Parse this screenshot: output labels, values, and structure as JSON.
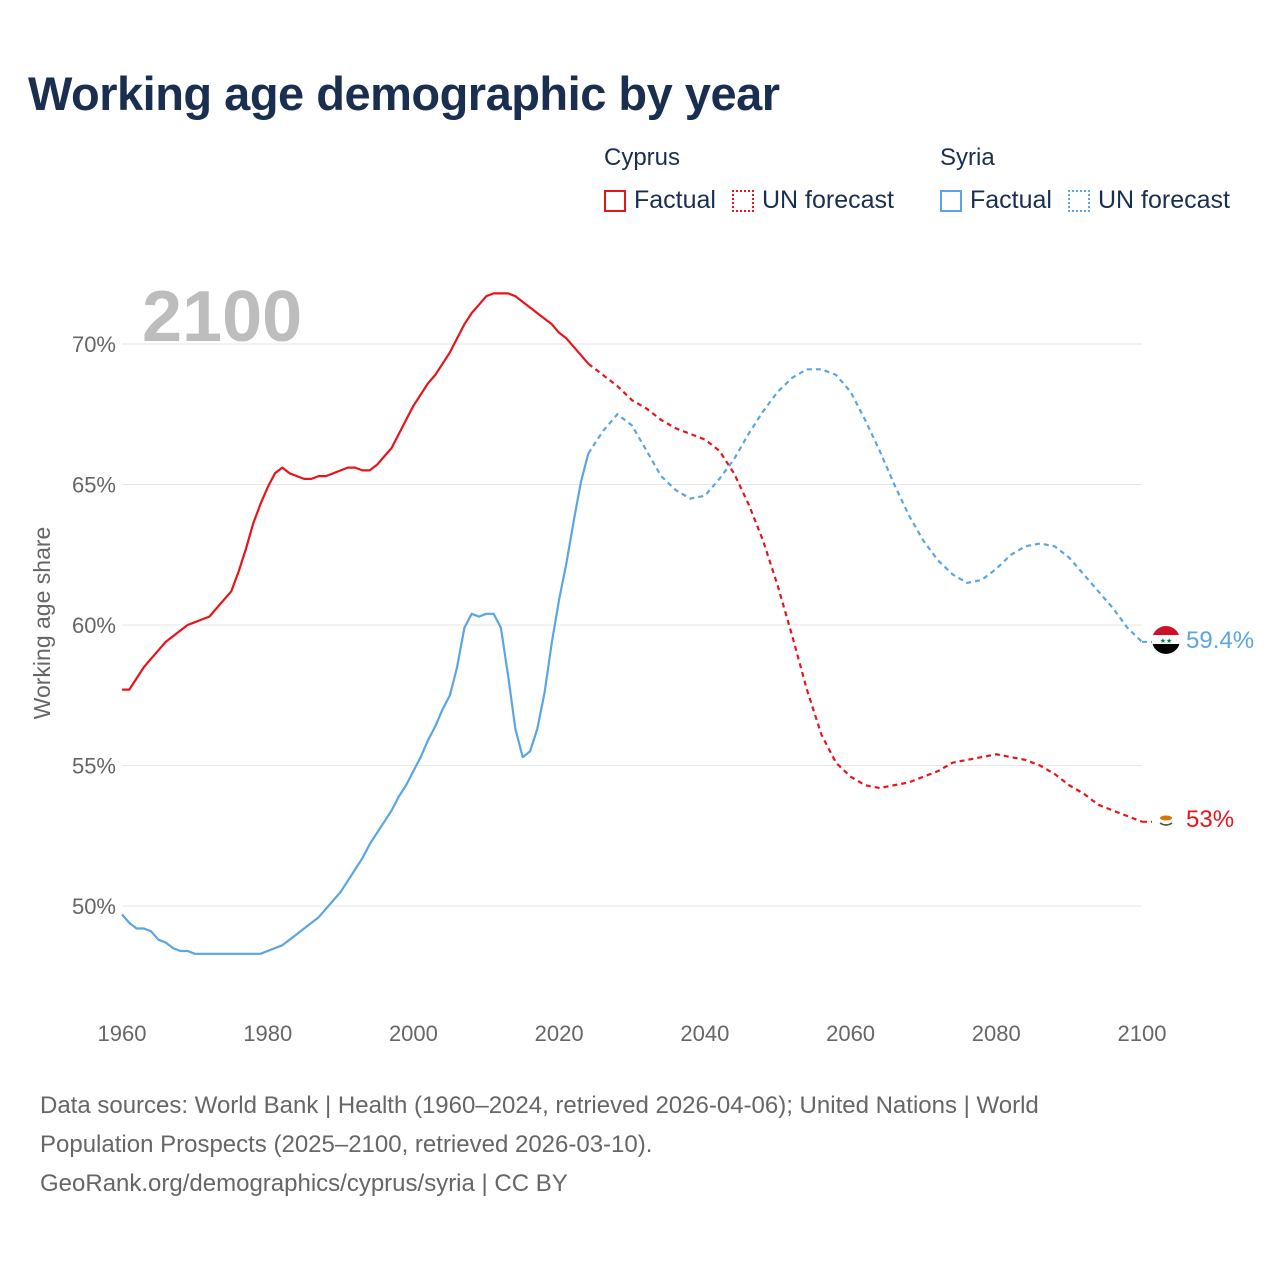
{
  "title": "Working age demographic by year",
  "year_label": "2100",
  "legend": {
    "groups": [
      {
        "name": "Cyprus",
        "factual": "Factual",
        "forecast": "UN forecast",
        "color": "#e8141b"
      },
      {
        "name": "Syria",
        "factual": "Factual",
        "forecast": "UN forecast",
        "color": "#5aa5e3"
      }
    ]
  },
  "footer": {
    "line1": "Data sources: World Bank | Health (1960–2024, retrieved 2026-04-06); United Nations | World",
    "line2": "Population Prospects (2025–2100, retrieved 2026-03-10).",
    "line3": "GeoRank.org/demographics/cyprus/syria | CC BY"
  },
  "chart_data": {
    "type": "line",
    "title": "Working age demographic by year",
    "xlabel": "",
    "ylabel": "Working age share",
    "xlim": [
      1960,
      2100
    ],
    "ylim": [
      46.5,
      72.5
    ],
    "xticks": [
      1960,
      1980,
      2000,
      2020,
      2040,
      2060,
      2080,
      2100
    ],
    "yticks": [
      50,
      55,
      60,
      65,
      70
    ],
    "ytick_labels": [
      "50%",
      "55%",
      "60%",
      "65%",
      "70%"
    ],
    "xtick_labels": [
      "1960",
      "1980",
      "2000",
      "2020",
      "2040",
      "2060",
      "2080",
      "2100"
    ],
    "factual_end": 2024,
    "series": [
      {
        "name": "Cyprus",
        "color": "#e8141b",
        "end_label": "53%",
        "x": [
          1960,
          1961,
          1962,
          1963,
          1964,
          1965,
          1966,
          1967,
          1968,
          1969,
          1970,
          1971,
          1972,
          1973,
          1974,
          1975,
          1976,
          1977,
          1978,
          1979,
          1980,
          1981,
          1982,
          1983,
          1984,
          1985,
          1986,
          1987,
          1988,
          1989,
          1990,
          1991,
          1992,
          1993,
          1994,
          1995,
          1996,
          1997,
          1998,
          1999,
          2000,
          2001,
          2002,
          2003,
          2004,
          2005,
          2006,
          2007,
          2008,
          2009,
          2010,
          2011,
          2012,
          2013,
          2014,
          2015,
          2016,
          2017,
          2018,
          2019,
          2020,
          2021,
          2022,
          2023,
          2024,
          2026,
          2028,
          2030,
          2032,
          2034,
          2036,
          2038,
          2040,
          2042,
          2044,
          2046,
          2048,
          2050,
          2052,
          2054,
          2056,
          2058,
          2060,
          2062,
          2064,
          2066,
          2068,
          2070,
          2072,
          2074,
          2076,
          2078,
          2080,
          2082,
          2084,
          2086,
          2088,
          2090,
          2092,
          2094,
          2096,
          2098,
          2100
        ],
        "values": [
          57.7,
          57.7,
          58.1,
          58.5,
          58.8,
          59.1,
          59.4,
          59.6,
          59.8,
          60.0,
          60.1,
          60.2,
          60.3,
          60.6,
          60.9,
          61.2,
          61.9,
          62.7,
          63.6,
          64.3,
          64.9,
          65.4,
          65.6,
          65.4,
          65.3,
          65.2,
          65.2,
          65.3,
          65.3,
          65.4,
          65.5,
          65.6,
          65.6,
          65.5,
          65.5,
          65.7,
          66.0,
          66.3,
          66.8,
          67.3,
          67.8,
          68.2,
          68.6,
          68.9,
          69.3,
          69.7,
          70.2,
          70.7,
          71.1,
          71.4,
          71.7,
          71.8,
          71.8,
          71.8,
          71.7,
          71.5,
          71.3,
          71.1,
          70.9,
          70.7,
          70.4,
          70.2,
          69.9,
          69.6,
          69.3,
          68.9,
          68.5,
          68.0,
          67.7,
          67.3,
          67.0,
          66.8,
          66.6,
          66.2,
          65.4,
          64.3,
          63.0,
          61.4,
          59.6,
          57.7,
          56.1,
          55.1,
          54.6,
          54.3,
          54.2,
          54.3,
          54.4,
          54.6,
          54.8,
          55.1,
          55.2,
          55.3,
          55.4,
          55.3,
          55.2,
          55.0,
          54.7,
          54.3,
          54.0,
          53.6,
          53.4,
          53.2,
          53.0
        ]
      },
      {
        "name": "Syria",
        "color": "#5aa5e3",
        "end_label": "59.4%",
        "x": [
          1960,
          1961,
          1962,
          1963,
          1964,
          1965,
          1966,
          1967,
          1968,
          1969,
          1970,
          1971,
          1972,
          1973,
          1974,
          1975,
          1976,
          1977,
          1978,
          1979,
          1980,
          1981,
          1982,
          1983,
          1984,
          1985,
          1986,
          1987,
          1988,
          1989,
          1990,
          1991,
          1992,
          1993,
          1994,
          1995,
          1996,
          1997,
          1998,
          1999,
          2000,
          2001,
          2002,
          2003,
          2004,
          2005,
          2006,
          2007,
          2008,
          2009,
          2010,
          2011,
          2012,
          2013,
          2014,
          2015,
          2016,
          2017,
          2018,
          2019,
          2020,
          2021,
          2022,
          2023,
          2024,
          2026,
          2028,
          2030,
          2032,
          2034,
          2036,
          2038,
          2040,
          2042,
          2044,
          2046,
          2048,
          2050,
          2052,
          2054,
          2056,
          2058,
          2060,
          2062,
          2064,
          2066,
          2068,
          2070,
          2072,
          2074,
          2076,
          2078,
          2080,
          2082,
          2084,
          2086,
          2088,
          2090,
          2092,
          2094,
          2096,
          2098,
          2100
        ],
        "values": [
          49.7,
          49.4,
          49.2,
          49.2,
          49.1,
          48.8,
          48.7,
          48.5,
          48.4,
          48.4,
          48.3,
          48.3,
          48.3,
          48.3,
          48.3,
          48.3,
          48.3,
          48.3,
          48.3,
          48.3,
          48.4,
          48.5,
          48.6,
          48.8,
          49.0,
          49.2,
          49.4,
          49.6,
          49.9,
          50.2,
          50.5,
          50.9,
          51.3,
          51.7,
          52.2,
          52.6,
          53.0,
          53.4,
          53.9,
          54.3,
          54.8,
          55.3,
          55.9,
          56.4,
          57.0,
          57.5,
          58.5,
          59.9,
          60.4,
          60.3,
          60.4,
          60.4,
          59.9,
          58.2,
          56.3,
          55.3,
          55.5,
          56.3,
          57.6,
          59.4,
          60.9,
          62.2,
          63.7,
          65.1,
          66.1,
          66.9,
          67.5,
          67.1,
          66.2,
          65.3,
          64.8,
          64.5,
          64.6,
          65.2,
          65.9,
          66.8,
          67.6,
          68.3,
          68.8,
          69.1,
          69.1,
          68.9,
          68.3,
          67.3,
          66.2,
          65.0,
          63.9,
          63.0,
          62.3,
          61.8,
          61.5,
          61.6,
          62.0,
          62.5,
          62.8,
          62.9,
          62.8,
          62.4,
          61.8,
          61.2,
          60.6,
          59.9,
          59.4
        ]
      }
    ]
  }
}
